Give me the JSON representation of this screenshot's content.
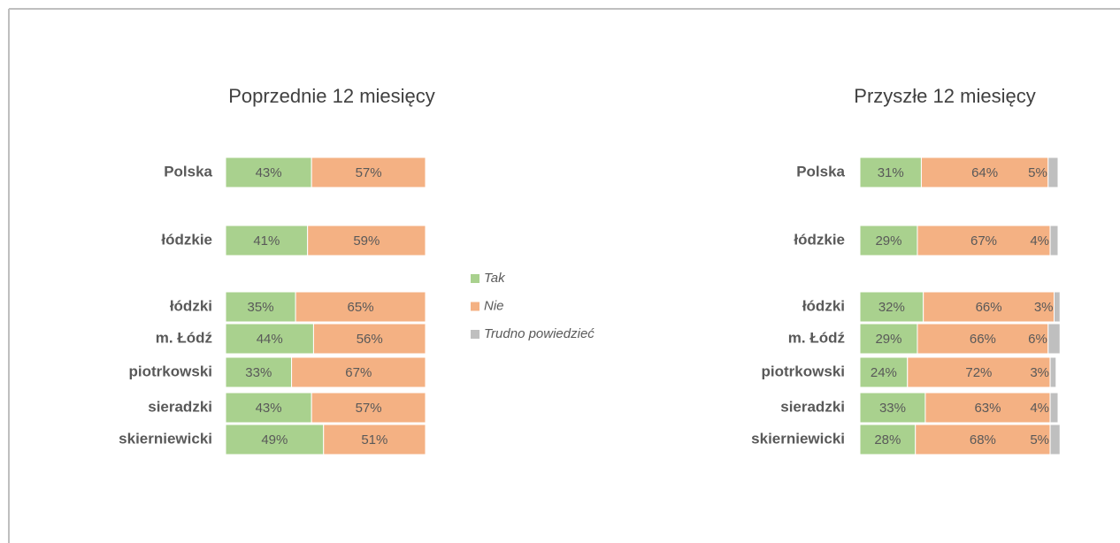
{
  "chart_data": [
    {
      "type": "stacked-bar-horizontal",
      "title": "Poprzednie 12 miesięcy",
      "categories": [
        "Polska",
        "łódzkie",
        "łódzki",
        "m. Łódź",
        "piotrkowski",
        "sieradzki",
        "skierniewicki"
      ],
      "xlim": [
        0,
        100
      ],
      "series": [
        {
          "name": "Tak",
          "color": "#a9d18e",
          "values": [
            43,
            41,
            35,
            44,
            33,
            43,
            49
          ],
          "value_labels": [
            "43%",
            "41%",
            "35%",
            "44%",
            "33%",
            "43%",
            "49%"
          ]
        },
        {
          "name": "Nie",
          "color": "#f4b183",
          "values": [
            57,
            59,
            65,
            56,
            67,
            57,
            51
          ],
          "value_labels": [
            "57%",
            "59%",
            "65%",
            "56%",
            "67%",
            "57%",
            "51%"
          ]
        }
      ]
    },
    {
      "type": "stacked-bar-horizontal",
      "title": "Przyszłe 12 miesięcy",
      "categories": [
        "Polska",
        "łódzkie",
        "łódzki",
        "m. Łódź",
        "piotrkowski",
        "sieradzki",
        "skierniewicki"
      ],
      "xlim": [
        0,
        100
      ],
      "series": [
        {
          "name": "Tak",
          "color": "#a9d18e",
          "values": [
            31,
            29,
            32,
            29,
            24,
            33,
            28
          ],
          "value_labels": [
            "31%",
            "29%",
            "32%",
            "29%",
            "24%",
            "33%",
            "28%"
          ]
        },
        {
          "name": "Nie",
          "color": "#f4b183",
          "values": [
            64,
            67,
            66,
            66,
            72,
            63,
            68
          ],
          "value_labels": [
            "64%",
            "67%",
            "66%",
            "66%",
            "72%",
            "63%",
            "68%"
          ]
        },
        {
          "name": "Trudno powiedzieć",
          "color": "#bfbfbf",
          "values": [
            5,
            4,
            3,
            6,
            3,
            4,
            5
          ],
          "value_labels": [
            "5%",
            "4%",
            "3%",
            "6%",
            "3%",
            "4%",
            "5%"
          ]
        }
      ]
    }
  ]
}
